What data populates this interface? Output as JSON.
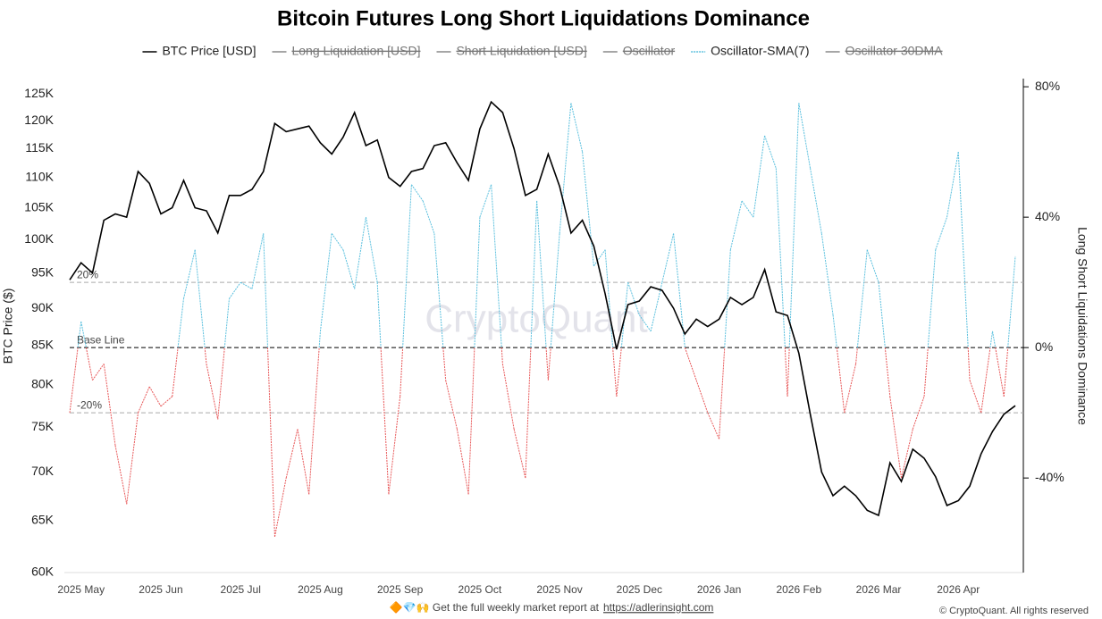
{
  "chart_data": {
    "type": "line",
    "title": "Bitcoin Futures Long Short Liquidations Dominance",
    "y_label": "BTC Price ($)",
    "y2_label": "Long Short Liquidations Dominance",
    "watermark": "CryptoQuant",
    "footer": "🔶💎🙌 Get the full weekly market report at",
    "footer_link": "https://adlerinsight.com",
    "copyright": "© CryptoQuant. All rights reserved",
    "log_scale": true,
    "categories": [
      null,
      "2025 May",
      null,
      null,
      null,
      null,
      null,
      null,
      "2025 Jun",
      null,
      null,
      null,
      null,
      null,
      null,
      "2025 Jul",
      null,
      null,
      null,
      null,
      null,
      null,
      "2025 Aug",
      null,
      null,
      null,
      null,
      null,
      null,
      "2025 Sep",
      null,
      null,
      null,
      null,
      null,
      null,
      "2025 Oct",
      null,
      null,
      null,
      null,
      null,
      null,
      "2025 Nov",
      null,
      null,
      null,
      null,
      null,
      null,
      "2025 Dec",
      null,
      null,
      null,
      null,
      null,
      null,
      "2026 Jan",
      null,
      null,
      null,
      null,
      null,
      null,
      "2026 Feb",
      null,
      null,
      null,
      null,
      null,
      null,
      "2026 Mar",
      null,
      null,
      null,
      null,
      null,
      null,
      "2026 Apr",
      null,
      null,
      null,
      null,
      null
    ],
    "series": [
      {
        "name": "BTC Price [USD]",
        "color": "#000000",
        "values": [
          94000,
          96500,
          95000,
          103000,
          104000,
          103500,
          111000,
          109000,
          104000,
          105000,
          109500,
          105000,
          104500,
          101000,
          107000,
          107000,
          108000,
          111000,
          119500,
          118000,
          118500,
          119000,
          116000,
          114000,
          117000,
          121500,
          115500,
          116500,
          110000,
          108500,
          111000,
          111500,
          115500,
          116000,
          112500,
          109500,
          118500,
          123500,
          121500,
          115000,
          107000,
          108000,
          114000,
          108500,
          101000,
          103000,
          99000,
          92000,
          84500,
          90500,
          91000,
          93000,
          92500,
          90000,
          86500,
          88500,
          87500,
          88500,
          91500,
          90500,
          91500,
          95500,
          89500,
          89000,
          84000,
          76500,
          70000,
          67500,
          68500,
          67500,
          66000,
          65500,
          71000,
          69000,
          72500,
          71500,
          69500,
          66500,
          67000,
          68500,
          72000,
          74500,
          76500,
          77500
        ]
      },
      {
        "name": "Long Liquidation [USD]",
        "color": "#888888",
        "hidden": true
      },
      {
        "name": "Short Liquidation [USD]",
        "color": "#888888",
        "hidden": true
      },
      {
        "name": "Oscillator",
        "color": "#888888",
        "hidden": true
      },
      {
        "name": "Oscillator-SMA(7)",
        "color": "#5bc0de",
        "negative_color": "#e8595a",
        "axis": "y2",
        "values": [
          -20,
          8,
          -10,
          -5,
          -30,
          -48,
          -20,
          -12,
          -18,
          -15,
          15,
          30,
          -5,
          -22,
          15,
          20,
          18,
          35,
          -58,
          -40,
          -25,
          -45,
          5,
          35,
          30,
          18,
          40,
          20,
          -45,
          -15,
          50,
          45,
          35,
          -10,
          -25,
          -45,
          40,
          50,
          -5,
          -25,
          -40,
          45,
          -10,
          35,
          75,
          60,
          25,
          30,
          -15,
          20,
          10,
          5,
          20,
          35,
          0,
          -10,
          -20,
          -28,
          30,
          45,
          40,
          65,
          55,
          -15,
          75,
          55,
          35,
          10,
          -20,
          -5,
          30,
          20,
          -15,
          -40,
          -25,
          -15,
          30,
          40,
          60,
          -10,
          -20,
          5,
          -15,
          28
        ]
      },
      {
        "name": "Oscillator 30DMA",
        "color": "#888888",
        "hidden": true
      }
    ],
    "ylim": [
      60000,
      128000
    ],
    "yticks": [
      {
        "value": 60000,
        "label": "60K"
      },
      {
        "value": 65000,
        "label": "65K"
      },
      {
        "value": 70000,
        "label": "70K"
      },
      {
        "value": 75000,
        "label": "75K"
      },
      {
        "value": 80000,
        "label": "80K"
      },
      {
        "value": 85000,
        "label": "85K"
      },
      {
        "value": 90000,
        "label": "90K"
      },
      {
        "value": 95000,
        "label": "95K"
      },
      {
        "value": 100000,
        "label": "100K"
      },
      {
        "value": 105000,
        "label": "105K"
      },
      {
        "value": 110000,
        "label": "110K"
      },
      {
        "value": 115000,
        "label": "115K"
      },
      {
        "value": 120000,
        "label": "120K"
      },
      {
        "value": 125000,
        "label": "125K"
      }
    ],
    "y2lim": [
      -69,
      82.5
    ],
    "y2ticks": [
      {
        "value": -40,
        "label": "-40%"
      },
      {
        "value": 0,
        "label": "0%"
      },
      {
        "value": 40,
        "label": "40%"
      },
      {
        "value": 80,
        "label": "80%"
      }
    ],
    "reference_lines": [
      {
        "value": 20,
        "label": "20%",
        "axis": "y2",
        "color": "#aaaaaa"
      },
      {
        "value": 0,
        "label": "Base Line",
        "axis": "y2",
        "color": "#000000"
      },
      {
        "value": -20,
        "label": "-20%",
        "axis": "y2",
        "color": "#aaaaaa"
      }
    ]
  }
}
